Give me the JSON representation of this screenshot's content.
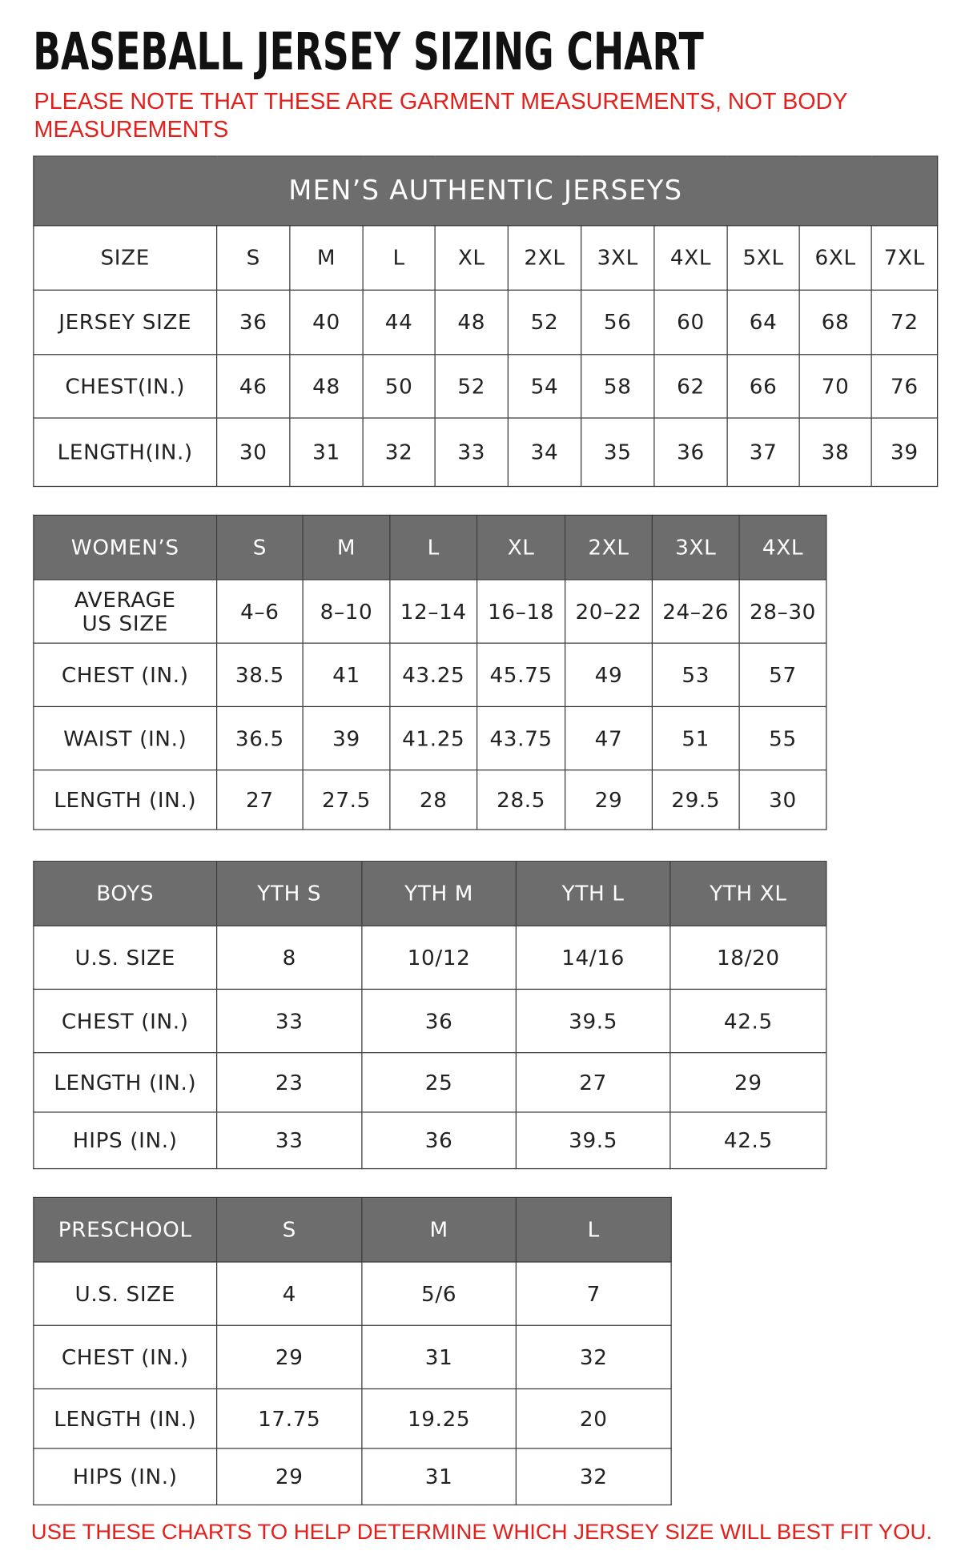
{
  "title": "BASEBALL JERSEY SIZING CHART",
  "note": "PLEASE NOTE THAT THESE ARE GARMENT MEASUREMENTS, NOT BODY MEASUREMENTS",
  "tables": [
    {
      "title": "MEN’S AUTHENTIC JERSEYS",
      "header": [
        "SIZE",
        "S",
        "M",
        "L",
        "XL",
        "2XL",
        "3XL",
        "4XL",
        "5XL",
        "6XL",
        "7XL"
      ],
      "rows": [
        [
          "JERSEY SIZE",
          "36",
          "40",
          "44",
          "48",
          "52",
          "56",
          "60",
          "64",
          "68",
          "72"
        ],
        [
          "CHEST(IN.)",
          "46",
          "48",
          "50",
          "52",
          "54",
          "58",
          "62",
          "66",
          "70",
          "76"
        ],
        [
          "LENGTH(IN.)",
          "30",
          "31",
          "32",
          "33",
          "34",
          "35",
          "36",
          "37",
          "38",
          "39"
        ]
      ]
    },
    {
      "header": [
        "WOMEN’S",
        "S",
        "M",
        "L",
        "XL",
        "2XL",
        "3XL",
        "4XL"
      ],
      "rows": [
        [
          "AVERAGE\nUS SIZE",
          "4–6",
          "8–10",
          "12–14",
          "16–18",
          "20–22",
          "24–26",
          "28–30"
        ],
        [
          "CHEST (IN.)",
          "38.5",
          "41",
          "43.25",
          "45.75",
          "49",
          "53",
          "57"
        ],
        [
          "WAIST (IN.)",
          "36.5",
          "39",
          "41.25",
          "43.75",
          "47",
          "51",
          "55"
        ],
        [
          "LENGTH (IN.)",
          "27",
          "27.5",
          "28",
          "28.5",
          "29",
          "29.5",
          "30"
        ]
      ]
    },
    {
      "header": [
        "BOYS",
        "YTH S",
        "YTH M",
        "YTH L",
        "YTH XL"
      ],
      "rows": [
        [
          "U.S. SIZE",
          "8",
          "10/12",
          "14/16",
          "18/20"
        ],
        [
          "CHEST (IN.)",
          "33",
          "36",
          "39.5",
          "42.5"
        ],
        [
          "LENGTH (IN.)",
          "23",
          "25",
          "27",
          "29"
        ],
        [
          "HIPS (IN.)",
          "33",
          "36",
          "39.5",
          "42.5"
        ]
      ]
    },
    {
      "header": [
        "PRESCHOOL",
        "S",
        "M",
        "L"
      ],
      "rows": [
        [
          "U.S. SIZE",
          "4",
          "5/6",
          "7"
        ],
        [
          "CHEST (IN.)",
          "29",
          "31",
          "32"
        ],
        [
          "LENGTH (IN.)",
          "17.75",
          "19.25",
          "20"
        ],
        [
          "HIPS (IN.)",
          "29",
          "31",
          "32"
        ]
      ]
    }
  ],
  "footer": "USE THESE CHARTS TO HELP DETERMINE WHICH JERSEY SIZE WILL BEST FIT YOU."
}
